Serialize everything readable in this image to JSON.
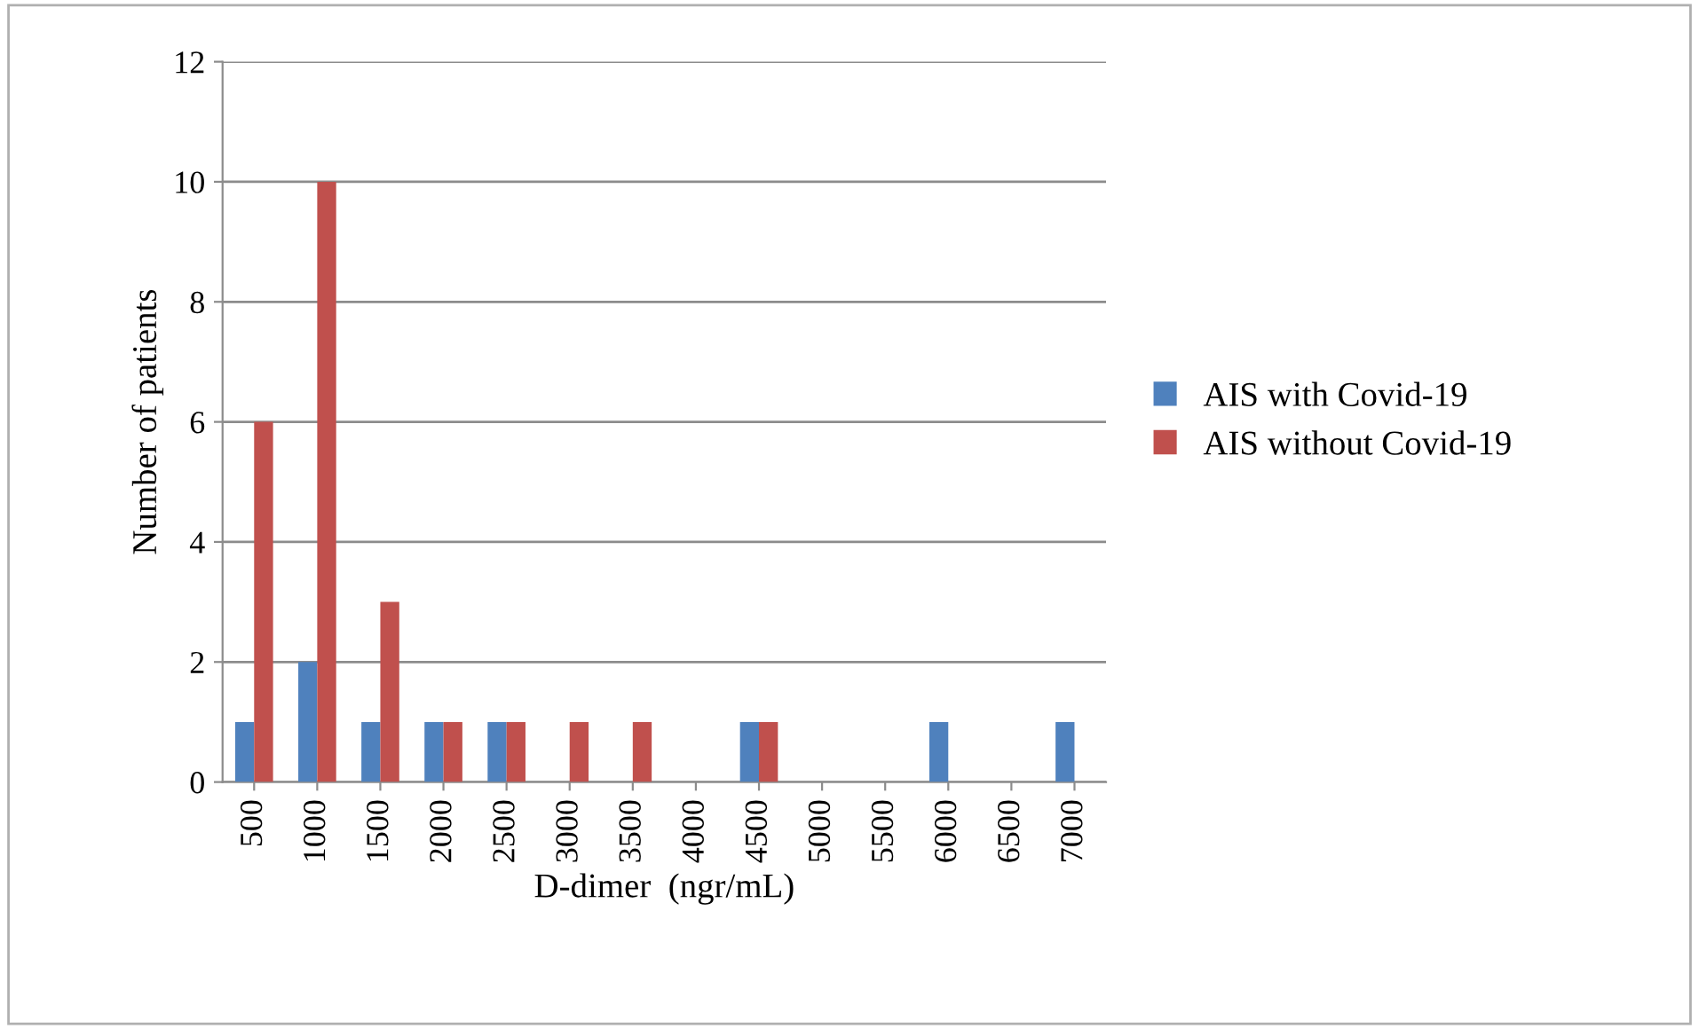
{
  "chart_data": {
    "type": "bar",
    "xlabel": "D-dimer  (ngr/mL)",
    "ylabel": "Number of patients",
    "categories": [
      "500",
      "1000",
      "1500",
      "2000",
      "2500",
      "3000",
      "3500",
      "4000",
      "4500",
      "5000",
      "5500",
      "6000",
      "6500",
      "7000"
    ],
    "series": [
      {
        "name": "AIS with Covid-19",
        "color": "#4f81bd",
        "values": [
          1,
          2,
          1,
          1,
          1,
          0,
          0,
          0,
          1,
          0,
          0,
          1,
          0,
          1
        ]
      },
      {
        "name": "AIS without Covid-19",
        "color": "#c0504d",
        "values": [
          6,
          10,
          3,
          1,
          1,
          1,
          1,
          0,
          1,
          0,
          0,
          0,
          0,
          0
        ]
      }
    ],
    "ylim": [
      0,
      12
    ],
    "yticks": [
      0,
      2,
      4,
      6,
      8,
      10,
      12
    ],
    "grid": "y",
    "legend": "right"
  }
}
